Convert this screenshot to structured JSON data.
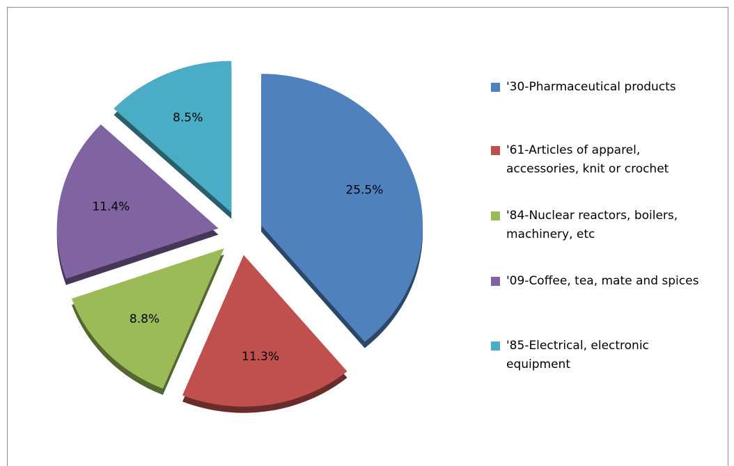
{
  "chart_data": {
    "type": "pie",
    "categories": [
      "'30-Pharmaceutical products",
      "'61-Articles of apparel, accessories, knit or crochet",
      "'84-Nuclear reactors, boilers, machinery, etc",
      "'09-Coffee, tea, mate and spices",
      "'85-Electrical, electronic equipment"
    ],
    "values": [
      25.5,
      11.3,
      8.8,
      11.4,
      8.5
    ],
    "value_labels": [
      "25.5%",
      "11.3%",
      "8.8%",
      "11.4%",
      "8.5%"
    ],
    "colors": [
      "#4f81bd",
      "#c0504d",
      "#9bbb59",
      "#8064a2",
      "#4bacc6"
    ],
    "legend": "right"
  }
}
